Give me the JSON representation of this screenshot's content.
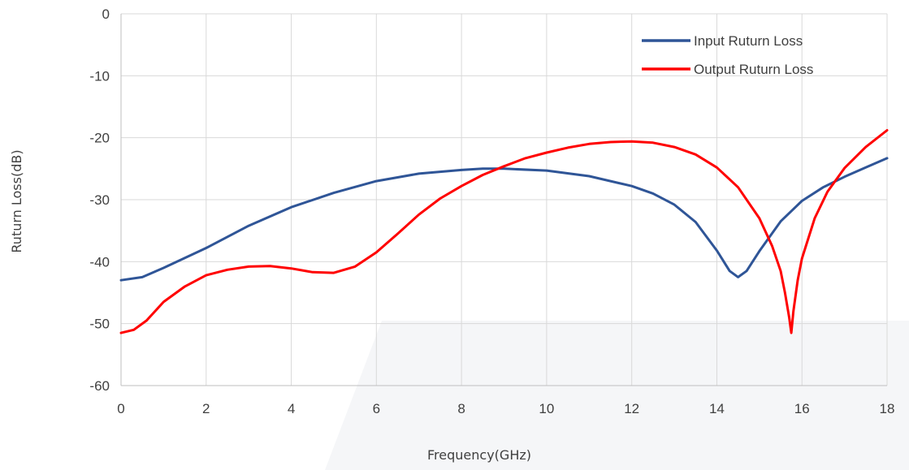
{
  "chart_data": {
    "type": "line",
    "xlabel": "Frequency(GHz)",
    "ylabel": "Ruturn Loss(dB)",
    "xlim": [
      0,
      18
    ],
    "ylim": [
      -60,
      0
    ],
    "xticks": [
      0,
      2,
      4,
      6,
      8,
      10,
      12,
      14,
      16,
      18
    ],
    "yticks": [
      0,
      -10,
      -20,
      -30,
      -40,
      -50,
      -60
    ],
    "grid": true,
    "legend_position": "top-right",
    "series": [
      {
        "name": "Input Ruturn Loss",
        "color": "#2f5597",
        "x": [
          0,
          0.5,
          1,
          2,
          3,
          4,
          5,
          6,
          7,
          8,
          8.5,
          9,
          10,
          11,
          12,
          12.5,
          13,
          13.5,
          14,
          14.3,
          14.5,
          14.7,
          15,
          15.5,
          16,
          16.5,
          17,
          17.5,
          18
        ],
        "y": [
          -43,
          -42.5,
          -41,
          -37.8,
          -34.2,
          -31.2,
          -28.9,
          -27,
          -25.8,
          -25.2,
          -25,
          -25,
          -25.3,
          -26.2,
          -27.8,
          -29,
          -30.8,
          -33.6,
          -38.2,
          -41.5,
          -42.5,
          -41.5,
          -38.3,
          -33.5,
          -30.2,
          -28,
          -26.3,
          -24.8,
          -23.3
        ]
      },
      {
        "name": "Output Ruturn Loss",
        "color": "#ff0000",
        "x": [
          0,
          0.3,
          0.6,
          1,
          1.5,
          2,
          2.5,
          3,
          3.5,
          4,
          4.5,
          5,
          5.5,
          6,
          6.5,
          7,
          7.5,
          8,
          8.5,
          9,
          9.5,
          10,
          10.5,
          11,
          11.5,
          12,
          12.5,
          13,
          13.5,
          14,
          14.5,
          15,
          15.3,
          15.5,
          15.6,
          15.7,
          15.75,
          15.8,
          15.9,
          16,
          16.3,
          16.6,
          17,
          17.5,
          18
        ],
        "y": [
          -51.5,
          -51,
          -49.5,
          -46.5,
          -44,
          -42.2,
          -41.3,
          -40.8,
          -40.7,
          -41.1,
          -41.7,
          -41.8,
          -40.8,
          -38.5,
          -35.5,
          -32.4,
          -29.8,
          -27.8,
          -26,
          -24.6,
          -23.3,
          -22.4,
          -21.6,
          -21,
          -20.7,
          -20.6,
          -20.8,
          -21.5,
          -22.7,
          -24.8,
          -28,
          -33,
          -37.5,
          -41.5,
          -45,
          -49,
          -51.5,
          -48,
          -43,
          -39.5,
          -33,
          -28.7,
          -24.9,
          -21.5,
          -18.8
        ]
      }
    ]
  }
}
